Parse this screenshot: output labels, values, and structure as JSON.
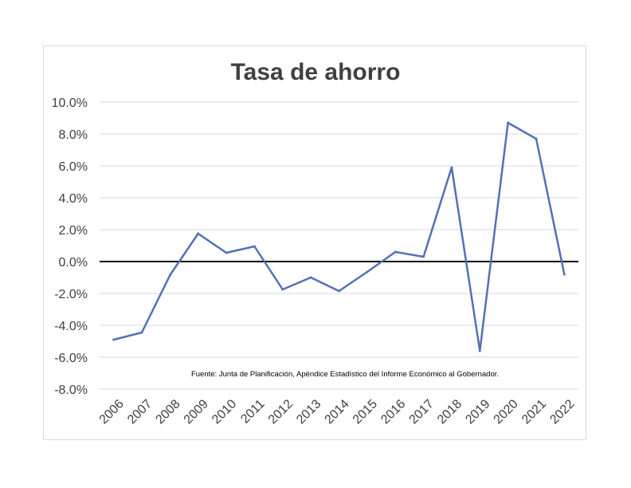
{
  "chart_data": {
    "type": "line",
    "title": "Tasa de ahorro",
    "xlabel": "",
    "ylabel": "",
    "x": [
      "2006",
      "2007",
      "2008",
      "2009",
      "2010",
      "2011",
      "2012",
      "2013",
      "2014",
      "2015",
      "2016",
      "2017",
      "2018",
      "2019",
      "2020",
      "2021",
      "2022"
    ],
    "series": [
      {
        "values": [
          -4.9,
          -4.45,
          -0.85,
          1.75,
          0.55,
          0.95,
          -1.75,
          -1.0,
          -1.85,
          -0.65,
          0.6,
          0.3,
          5.9,
          -5.6,
          8.7,
          7.7,
          -0.8
        ],
        "color": "#5470b5"
      }
    ],
    "ylim": [
      -8.0,
      10.0
    ],
    "yticks": [
      "10.0%",
      "8.0%",
      "6.0%",
      "4.0%",
      "2.0%",
      "0.0%",
      "-2.0%",
      "-4.0%",
      "-6.0%",
      "-8.0%"
    ],
    "ytick_values": [
      10,
      8,
      6,
      4,
      2,
      0,
      -2,
      -4,
      -6,
      -8
    ],
    "grid": true,
    "zero_line_color": "#000000",
    "annotation": "Fuente: Junta de Planificación, Apéndice Estadístico del Informe Económico al Gobernador."
  }
}
